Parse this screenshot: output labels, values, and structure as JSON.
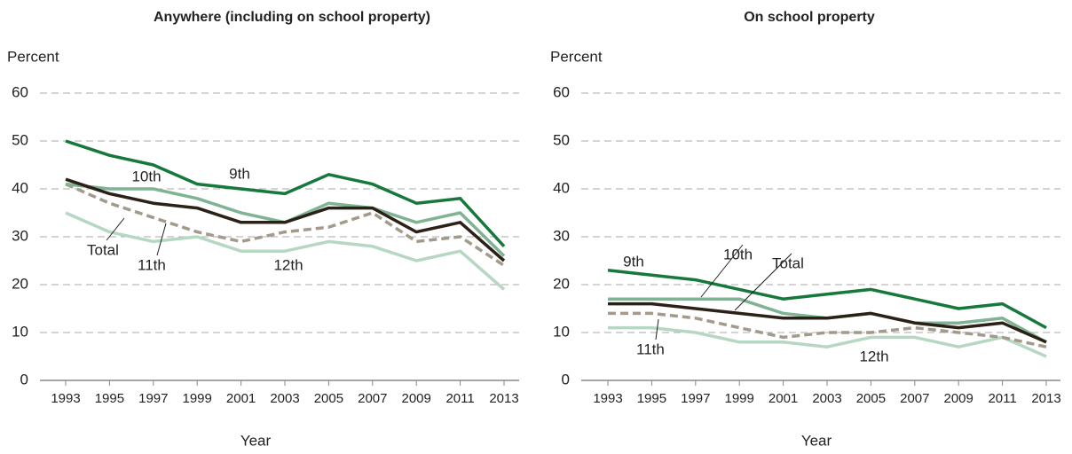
{
  "chart_data": [
    {
      "type": "line",
      "title": "Anywhere (including on school property)",
      "y_label": "Percent",
      "x_label": "Year",
      "x": [
        1993,
        1995,
        1997,
        1999,
        2001,
        2003,
        2005,
        2007,
        2009,
        2011,
        2013
      ],
      "xlim": [
        1993,
        2013
      ],
      "xticks": [
        1993,
        1995,
        1997,
        1999,
        2001,
        2003,
        2005,
        2007,
        2009,
        2011,
        2013
      ],
      "ylim": [
        0,
        60
      ],
      "yticks": [
        0,
        10,
        20,
        30,
        40,
        50,
        60
      ],
      "grid": true,
      "series": [
        {
          "name": "9th",
          "color": "#17783c",
          "values": [
            50,
            47,
            45,
            41,
            40,
            39,
            43,
            41,
            37,
            38,
            28
          ]
        },
        {
          "name": "10th",
          "color": "#7fb393",
          "values": [
            41,
            40,
            40,
            38,
            35,
            33,
            37,
            36,
            33,
            35,
            26
          ]
        },
        {
          "name": "Total",
          "color": "#2b2116",
          "values": [
            42,
            39,
            37,
            36,
            33,
            33,
            36,
            36,
            31,
            33,
            25
          ]
        },
        {
          "name": "11th",
          "color": "#a39a8b",
          "dashed": true,
          "values": [
            41,
            37,
            34,
            31,
            29,
            31,
            32,
            35,
            29,
            30,
            24
          ]
        },
        {
          "name": "12th",
          "color": "#b6d7c2",
          "values": [
            35,
            31,
            29,
            30,
            27,
            27,
            29,
            28,
            25,
            27,
            19
          ]
        }
      ]
    },
    {
      "type": "line",
      "title": "On school property",
      "y_label": "Percent",
      "x_label": "Year",
      "x": [
        1993,
        1995,
        1997,
        1999,
        2001,
        2003,
        2005,
        2007,
        2009,
        2011,
        2013
      ],
      "xlim": [
        1993,
        2013
      ],
      "xticks": [
        1993,
        1995,
        1997,
        1999,
        2001,
        2003,
        2005,
        2007,
        2009,
        2011,
        2013
      ],
      "ylim": [
        0,
        60
      ],
      "yticks": [
        0,
        10,
        20,
        30,
        40,
        50,
        60
      ],
      "grid": true,
      "series": [
        {
          "name": "9th",
          "color": "#17783c",
          "values": [
            23,
            22,
            21,
            19,
            17,
            18,
            19,
            17,
            15,
            16,
            11
          ]
        },
        {
          "name": "10th",
          "color": "#7fb393",
          "values": [
            17,
            17,
            17,
            17,
            14,
            13,
            14,
            12,
            12,
            13,
            8
          ]
        },
        {
          "name": "Total",
          "color": "#2b2116",
          "values": [
            16,
            16,
            15,
            14,
            13,
            13,
            14,
            12,
            11,
            12,
            8
          ]
        },
        {
          "name": "11th",
          "color": "#a39a8b",
          "dashed": true,
          "values": [
            14,
            14,
            13,
            11,
            9,
            10,
            10,
            11,
            10,
            9,
            7
          ]
        },
        {
          "name": "12th",
          "color": "#b6d7c2",
          "values": [
            11,
            11,
            10,
            8,
            8,
            7,
            9,
            9,
            7,
            9,
            5
          ]
        }
      ]
    }
  ]
}
